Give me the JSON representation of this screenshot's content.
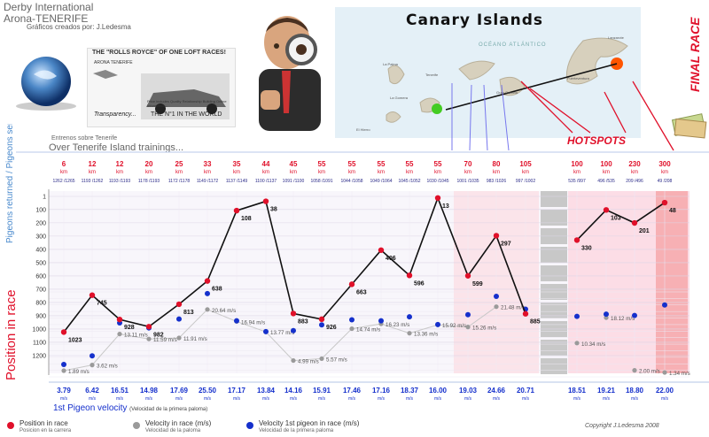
{
  "header": {
    "title_line1": "Derby International",
    "title_line2": "Arona-TENERIFE",
    "subtitle": "Gráficos creados por: J.Ledesma"
  },
  "ad": {
    "headline": "THE \"ROLLS ROYCE\" OF ONE LOFT RACES!",
    "brand": "ARONA TENERIFE",
    "price_note": "Price includes Quality Relationship Building Online Information...",
    "transparency": "Transparency...",
    "tagline": "THE N°1 IN THE WORLD"
  },
  "map": {
    "title": "Canary Islands",
    "ocean": "OCÉANO ATLÁNTICO",
    "labels": [
      "Lanzarote",
      "Fuerteventura",
      "Tenerife",
      "La Gomera",
      "El Hierro",
      "Gran Canaria",
      "La Palma"
    ],
    "hotspots_label": "HOTSPOTS"
  },
  "final_race_label": "FINAL RACE",
  "section": {
    "entrenos": "Entrenos sobre Tenerife",
    "over_tenerife": "Over Tenerife Island trainings..."
  },
  "y_axis_label_top": "Pigeons returned / Pigeons sent",
  "y_axis_label_main": "Position in race",
  "bottom_label": "1st Pigeon velocity",
  "bottom_label_sub": "(Velocidad de la primera paloma)",
  "legend": {
    "position": {
      "label": "Position in race",
      "sub": "Posicion en la carrera",
      "color": "#e0102a"
    },
    "velocity": {
      "label": "Velocity in race (m/s)",
      "sub": "Velocidad de la paloma",
      "color": "#999999"
    },
    "velocity_first": {
      "label": "Velocity 1st pigeon in race (m/s)",
      "sub": "Velocidad de la primera paloma",
      "color": "#1530cc"
    }
  },
  "copyright": "Copyright  J.Ledesma 2008",
  "colors": {
    "position_line": "#111111",
    "position_dot": "#e0102a",
    "velocity_dot": "#9a9a9a",
    "velocity_line": "#c8c8c8",
    "first_velocity_dot": "#1530cc",
    "hotspot_bg": "#fbe4ea",
    "final_bg": "#fcdde6",
    "final_stripe": "#f28a8a",
    "gap_gray": "#c8c8c8"
  },
  "chart_data": {
    "type": "line",
    "title": "",
    "ylabel": "Position in race",
    "ylim": [
      1,
      1280
    ],
    "y_ticks": [
      1,
      100,
      200,
      300,
      400,
      500,
      600,
      700,
      800,
      900,
      1000,
      1100,
      1200
    ],
    "categories": [
      {
        "dist": "6",
        "unit": "km",
        "ratio": "1262 /1265"
      },
      {
        "dist": "12",
        "unit": "km",
        "ratio": "1193 /1262"
      },
      {
        "dist": "12",
        "unit": "km",
        "ratio": "1193 /1193"
      },
      {
        "dist": "20",
        "unit": "km",
        "ratio": "1178 /1193"
      },
      {
        "dist": "25",
        "unit": "km",
        "ratio": "1172 /1178"
      },
      {
        "dist": "33",
        "unit": "km",
        "ratio": "1149 /1172"
      },
      {
        "dist": "35",
        "unit": "km",
        "ratio": "1137 /1149"
      },
      {
        "dist": "44",
        "unit": "km",
        "ratio": "1100 /1137"
      },
      {
        "dist": "45",
        "unit": "km",
        "ratio": "1091 /1100"
      },
      {
        "dist": "55",
        "unit": "km",
        "ratio": "1058 /1091"
      },
      {
        "dist": "55",
        "unit": "km",
        "ratio": "1044 /1058"
      },
      {
        "dist": "55",
        "unit": "km",
        "ratio": "1049 /1064"
      },
      {
        "dist": "55",
        "unit": "km",
        "ratio": "1045 /1052"
      },
      {
        "dist": "55",
        "unit": "km",
        "ratio": "1030 /1045"
      },
      {
        "dist": "70",
        "unit": "km",
        "ratio": "1001 /1035"
      },
      {
        "dist": "80",
        "unit": "km",
        "ratio": "983 /1026"
      },
      {
        "dist": "105",
        "unit": "km",
        "ratio": "997 /1002"
      },
      {
        "dist": "100",
        "unit": "km",
        "ratio": "535 /997"
      },
      {
        "dist": "100",
        "unit": "km",
        "ratio": "496 /535"
      },
      {
        "dist": "230",
        "unit": "km",
        "ratio": "209 /496"
      },
      {
        "dist": "300",
        "unit": "km",
        "ratio": "49 /208"
      }
    ],
    "series": [
      {
        "name": "Position in race",
        "values": [
          1023,
          745,
          928,
          982,
          813,
          638,
          108,
          38,
          883,
          926,
          663,
          406,
          596,
          13,
          599,
          297,
          885,
          330,
          103,
          201,
          48
        ]
      },
      {
        "name": "Velocity in race (m/s)",
        "values": [
          1.89,
          3.62,
          13.11,
          11.59,
          11.91,
          20.64,
          16.94,
          13.77,
          4.99,
          5.57,
          14.74,
          16.23,
          13.36,
          15.92,
          15.26,
          21.48,
          null,
          10.34,
          18.12,
          2.0,
          1.34
        ]
      },
      {
        "name": "Velocity 1st pigeon in race (m/s)",
        "values": [
          3.79,
          6.42,
          16.51,
          14.98,
          17.69,
          25.5,
          17.17,
          13.84,
          14.16,
          15.91,
          17.46,
          17.16,
          18.37,
          16.0,
          19.03,
          24.66,
          20.71,
          18.51,
          19.21,
          18.8,
          22.0
        ]
      }
    ],
    "velocity_labels": [
      "1.89 m/s",
      "3.62 m/s",
      "13.11 m/s",
      "11.59 m/s",
      "11.91 m/s",
      "20.64 m/s",
      "16.94 m/s",
      "13.77 m/s",
      "4.99 m/s",
      "5.57 m/s",
      "14.74 m/s",
      "16.23 m/s",
      "13.36 m/s",
      "15.92 m/s",
      "15.26 m/s",
      "21.48 m/s",
      "",
      "10.34 m/s",
      "18.12 m/s",
      "2.00 m/s",
      "1.34 m/s"
    ],
    "first_vel_main": [
      "3.79",
      "6.42",
      "16.51",
      "14.98",
      "17.69",
      "25.50",
      "17.17",
      "13.84",
      "14.16",
      "15.91",
      "17.46",
      "17.16",
      "18.37",
      "16.00",
      "19.03",
      "24.66",
      "20.71",
      "18.51",
      "19.21",
      "18.80",
      "22.00"
    ],
    "first_vel_unit": "m/s",
    "grid": true,
    "legend": "bottom"
  }
}
